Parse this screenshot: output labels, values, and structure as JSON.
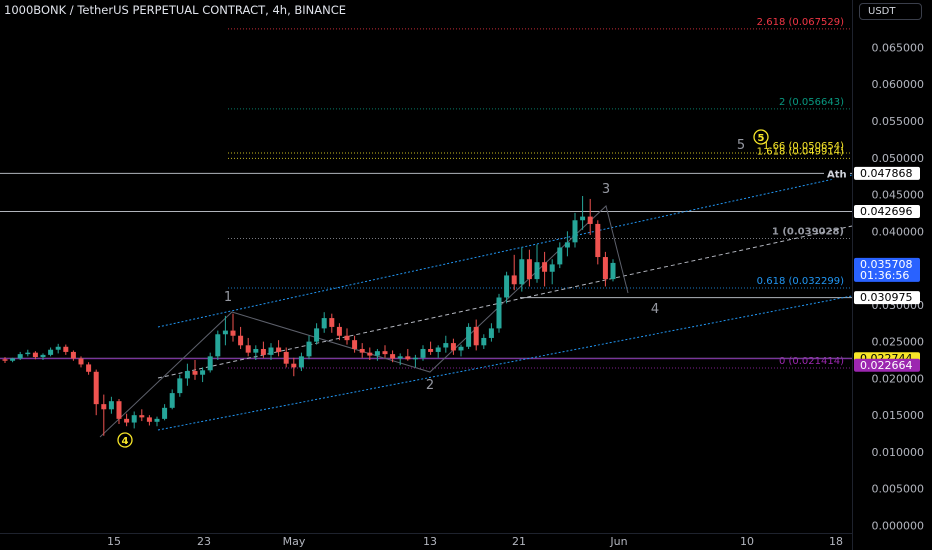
{
  "header": {
    "title": "1000BONK / TetherUS PERPETUAL CONTRACT, 4h, BINANCE",
    "currency_label": "USDT"
  },
  "chart_data": {
    "type": "candlestick",
    "title": "1000BONK / TetherUS PERPETUAL CONTRACT, 4h, BINANCE",
    "y_axis_side": "right",
    "ylim": [
      0,
      0.07
    ],
    "y_ticks": [
      "0.065000",
      "0.060000",
      "0.055000",
      "0.050000",
      "0.045000",
      "0.040000",
      "0.030000",
      "0.025000",
      "0.020000",
      "0.015000",
      "0.010000",
      "0.005000",
      "0.000000"
    ],
    "x_ticks": [
      "15",
      "23",
      "May",
      "13",
      "21",
      "Jun",
      "10",
      "18"
    ],
    "colors": {
      "up": "#26a69a",
      "down": "#ef5350",
      "background": "#000000"
    },
    "price_levels": [
      {
        "label": "0.047868",
        "value": 0.047868,
        "style": "white"
      },
      {
        "label": "0.042696",
        "value": 0.042696,
        "style": "white"
      },
      {
        "label": "0.035708",
        "value": 0.035708,
        "style": "current",
        "countdown": "01:36:56"
      },
      {
        "label": "0.030975",
        "value": 0.030975,
        "style": "white"
      },
      {
        "label": "0.022744",
        "value": 0.022744,
        "style": "yellow"
      },
      {
        "label": "0.022664",
        "value": 0.022664,
        "style": "purple"
      }
    ],
    "fib_levels": [
      {
        "label": "2.618 (0.067529)",
        "value": 0.067529,
        "color": "#f23645"
      },
      {
        "label": "2 (0.056643)",
        "value": 0.056643,
        "color": "#089981"
      },
      {
        "label": "1.66 (0.050654)",
        "value": 0.050654,
        "color": "#f7e629"
      },
      {
        "label": "1.618 (0.049914)",
        "value": 0.049914,
        "color": "#f7e629"
      },
      {
        "label": "1 (0.039028)",
        "value": 0.039028,
        "color": "#9598a1"
      },
      {
        "label": "0.618 (0.032299)",
        "value": 0.032299,
        "color": "#2196f3"
      },
      {
        "label": "0 (0.021414)",
        "value": 0.021414,
        "color": "#9c27b0"
      }
    ],
    "annotations": {
      "ath": "Ath",
      "wave_labels": [
        "1",
        "2",
        "3",
        "4",
        "5"
      ],
      "circled_labels": [
        "4",
        "5"
      ]
    },
    "candles": [
      [
        0.0226,
        0.0229,
        0.0221,
        0.0224
      ],
      [
        0.0224,
        0.0228,
        0.0222,
        0.0227
      ],
      [
        0.0227,
        0.0236,
        0.0225,
        0.0233
      ],
      [
        0.0233,
        0.0239,
        0.023,
        0.0235
      ],
      [
        0.0235,
        0.0237,
        0.0226,
        0.0229
      ],
      [
        0.0229,
        0.0234,
        0.0225,
        0.0232
      ],
      [
        0.0232,
        0.0242,
        0.023,
        0.0239
      ],
      [
        0.0239,
        0.0247,
        0.0234,
        0.0243
      ],
      [
        0.0243,
        0.0246,
        0.0232,
        0.0236
      ],
      [
        0.0236,
        0.0238,
        0.0224,
        0.0227
      ],
      [
        0.0227,
        0.023,
        0.0215,
        0.0219
      ],
      [
        0.0219,
        0.0222,
        0.0205,
        0.0209
      ],
      [
        0.0209,
        0.0212,
        0.015,
        0.0165
      ],
      [
        0.0165,
        0.0178,
        0.0122,
        0.0158
      ],
      [
        0.0158,
        0.0175,
        0.0152,
        0.0169
      ],
      [
        0.0169,
        0.0172,
        0.0138,
        0.0145
      ],
      [
        0.0145,
        0.0152,
        0.0135,
        0.014
      ],
      [
        0.014,
        0.0155,
        0.0132,
        0.015
      ],
      [
        0.015,
        0.0158,
        0.0142,
        0.0147
      ],
      [
        0.0147,
        0.015,
        0.0136,
        0.0141
      ],
      [
        0.0141,
        0.0148,
        0.0135,
        0.0145
      ],
      [
        0.0145,
        0.0165,
        0.0143,
        0.016
      ],
      [
        0.016,
        0.0185,
        0.0158,
        0.018
      ],
      [
        0.018,
        0.0205,
        0.0175,
        0.02
      ],
      [
        0.02,
        0.022,
        0.019,
        0.021
      ],
      [
        0.021,
        0.0225,
        0.0198,
        0.0205
      ],
      [
        0.0205,
        0.0215,
        0.0195,
        0.0211
      ],
      [
        0.0211,
        0.0235,
        0.0208,
        0.023
      ],
      [
        0.023,
        0.0265,
        0.0225,
        0.026
      ],
      [
        0.026,
        0.0285,
        0.0245,
        0.0265
      ],
      [
        0.0265,
        0.0288,
        0.025,
        0.0258
      ],
      [
        0.0258,
        0.027,
        0.024,
        0.0245
      ],
      [
        0.0245,
        0.0255,
        0.023,
        0.0235
      ],
      [
        0.0235,
        0.0245,
        0.0225,
        0.024
      ],
      [
        0.024,
        0.025,
        0.0228,
        0.0232
      ],
      [
        0.0232,
        0.0248,
        0.0225,
        0.0242
      ],
      [
        0.0242,
        0.0252,
        0.023,
        0.0236
      ],
      [
        0.0236,
        0.0242,
        0.0215,
        0.022
      ],
      [
        0.022,
        0.0228,
        0.0203,
        0.0215
      ],
      [
        0.0215,
        0.0235,
        0.021,
        0.023
      ],
      [
        0.023,
        0.0258,
        0.0226,
        0.025
      ],
      [
        0.025,
        0.0275,
        0.0246,
        0.0268
      ],
      [
        0.0268,
        0.029,
        0.0262,
        0.0282
      ],
      [
        0.0282,
        0.0288,
        0.0262,
        0.027
      ],
      [
        0.027,
        0.0275,
        0.0252,
        0.0258
      ],
      [
        0.0258,
        0.0268,
        0.0246,
        0.0252
      ],
      [
        0.0252,
        0.0258,
        0.0235,
        0.024
      ],
      [
        0.024,
        0.0248,
        0.0228,
        0.0235
      ],
      [
        0.0235,
        0.0242,
        0.0225,
        0.0231
      ],
      [
        0.0231,
        0.024,
        0.0224,
        0.0237
      ],
      [
        0.0237,
        0.0245,
        0.0228,
        0.0233
      ],
      [
        0.0233,
        0.0238,
        0.0222,
        0.0227
      ],
      [
        0.0227,
        0.0234,
        0.0218,
        0.023
      ],
      [
        0.023,
        0.024,
        0.0224,
        0.0226
      ],
      [
        0.0226,
        0.0232,
        0.0215,
        0.0228
      ],
      [
        0.0228,
        0.0245,
        0.0224,
        0.024
      ],
      [
        0.024,
        0.025,
        0.0232,
        0.0236
      ],
      [
        0.0236,
        0.0245,
        0.0228,
        0.0242
      ],
      [
        0.0242,
        0.0258,
        0.0235,
        0.0248
      ],
      [
        0.0248,
        0.0254,
        0.0232,
        0.0238
      ],
      [
        0.0238,
        0.0246,
        0.023,
        0.0243
      ],
      [
        0.0243,
        0.0275,
        0.024,
        0.027
      ],
      [
        0.027,
        0.028,
        0.0238,
        0.0245
      ],
      [
        0.0245,
        0.026,
        0.024,
        0.0255
      ],
      [
        0.0255,
        0.0275,
        0.025,
        0.0268
      ],
      [
        0.0268,
        0.0315,
        0.0262,
        0.031
      ],
      [
        0.031,
        0.0345,
        0.0302,
        0.034
      ],
      [
        0.034,
        0.0368,
        0.032,
        0.0328
      ],
      [
        0.0328,
        0.0378,
        0.0318,
        0.0362
      ],
      [
        0.0362,
        0.0375,
        0.0325,
        0.0335
      ],
      [
        0.0335,
        0.0382,
        0.033,
        0.0358
      ],
      [
        0.0358,
        0.0372,
        0.0325,
        0.0345
      ],
      [
        0.0345,
        0.0362,
        0.0328,
        0.0355
      ],
      [
        0.0355,
        0.0385,
        0.035,
        0.0378
      ],
      [
        0.0378,
        0.04,
        0.0366,
        0.0385
      ],
      [
        0.0385,
        0.0425,
        0.0378,
        0.0415
      ],
      [
        0.0415,
        0.0448,
        0.0402,
        0.042
      ],
      [
        0.042,
        0.0444,
        0.0395,
        0.041
      ],
      [
        0.041,
        0.0415,
        0.0355,
        0.0365
      ],
      [
        0.0365,
        0.0372,
        0.0325,
        0.0335
      ],
      [
        0.0335,
        0.0362,
        0.0332,
        0.0357
      ]
    ]
  }
}
